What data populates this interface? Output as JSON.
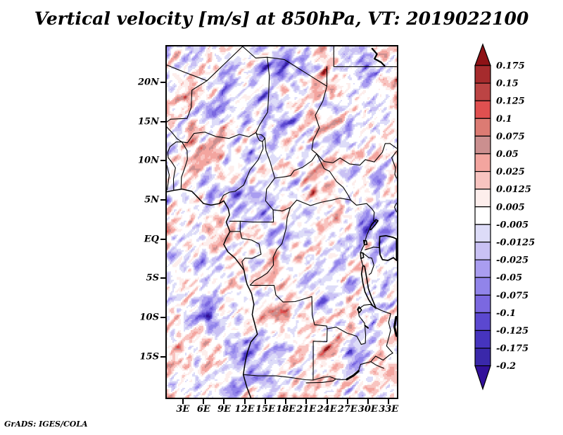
{
  "title": "Vertical velocity [m/s] at 850hPa, VT: 2019022100",
  "attribution": "GrADS: IGES/COLA",
  "axes": {
    "x_ticks": [
      "3E",
      "6E",
      "9E",
      "12E",
      "15E",
      "18E",
      "21E",
      "24E",
      "27E",
      "30E",
      "33E"
    ],
    "y_ticks": [
      "20N",
      "15N",
      "10N",
      "5N",
      "EQ",
      "5S",
      "10S",
      "15S"
    ]
  },
  "colorbar": {
    "labels": [
      "0.175",
      "0.15",
      "0.125",
      "0.1",
      "0.075",
      "0.05",
      "0.025",
      "0.0125",
      "0.005",
      "-0.005",
      "-0.0125",
      "-0.025",
      "-0.05",
      "-0.075",
      "-0.1",
      "-0.125",
      "-0.175",
      "-0.2"
    ],
    "colors": [
      "#8e1216",
      "#a62b2d",
      "#bc4444",
      "#e05050",
      "#dc7b73",
      "#cb8f8f",
      "#f3a59f",
      "#f8c4c0",
      "#fdeeec",
      "#ffffff",
      "#dddcf8",
      "#c9c1f4",
      "#a99df0",
      "#9184ea",
      "#7b68e0",
      "#5b48d0",
      "#4634be",
      "#3a28aa",
      "#32109a"
    ]
  },
  "chart_data": {
    "type": "heatmap",
    "title": "Vertical velocity [m/s] at 850hPa, VT: 2019022100",
    "variable": "Vertical velocity",
    "units": "m/s",
    "pressure_level": "850hPa",
    "valid_time": "2019022100",
    "xlabel": "",
    "ylabel": "",
    "x_ticks": [
      "3E",
      "6E",
      "9E",
      "12E",
      "15E",
      "18E",
      "21E",
      "24E",
      "27E",
      "30E",
      "33E"
    ],
    "y_ticks": [
      "20N",
      "15N",
      "10N",
      "5N",
      "EQ",
      "5S",
      "10S",
      "15S"
    ],
    "lon_range_deg_east": [
      0.6,
      34.2
    ],
    "lat_range_deg_north": [
      -20.2,
      24.6
    ],
    "levels": [
      0.175,
      0.15,
      0.125,
      0.1,
      0.075,
      0.05,
      0.025,
      0.0125,
      0.005,
      -0.005,
      -0.0125,
      -0.025,
      -0.05,
      -0.075,
      -0.1,
      -0.125,
      -0.175,
      -0.2
    ],
    "palette": [
      "#8e1216",
      "#a62b2d",
      "#bc4444",
      "#e05050",
      "#dc7b73",
      "#cb8f8f",
      "#f3a59f",
      "#f8c4c0",
      "#fdeeec",
      "#ffffff",
      "#dddcf8",
      "#c9c1f4",
      "#a99df0",
      "#9184ea",
      "#7b68e0",
      "#5b48d0",
      "#4634be",
      "#3a28aa",
      "#32109a"
    ],
    "legend_position": "right",
    "grid": false
  }
}
